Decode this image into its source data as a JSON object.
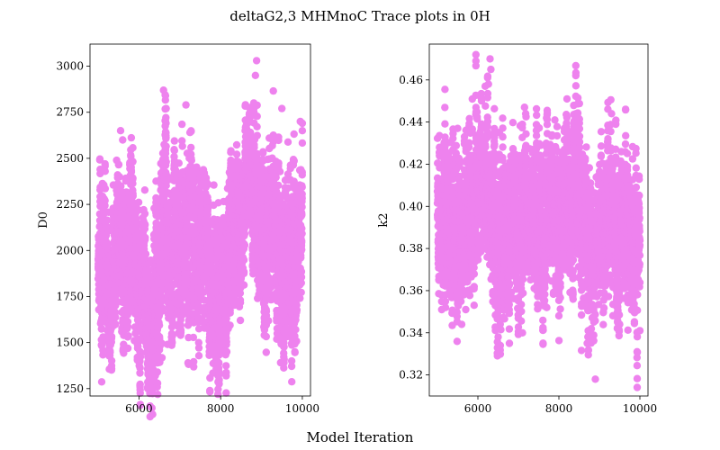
{
  "figure": {
    "title": "deltaG2,3 MHMnoC Trace plots in 0H",
    "xlabel": "Model Iteration"
  },
  "chart_data": [
    {
      "type": "scatter",
      "ylabel": "D0",
      "xlim": [
        4800,
        10200
      ],
      "ylim": [
        1210,
        3120
      ],
      "x_ticks": [
        6000,
        8000,
        10000
      ],
      "y_ticks": [
        1250,
        1500,
        1750,
        2000,
        2250,
        2500,
        2750,
        3000
      ],
      "grid": false,
      "marker_color": "#ee82ee",
      "x_range": [
        5000,
        10000
      ],
      "n_points": 5000,
      "trace": [
        [
          5000,
          1950
        ],
        [
          5100,
          1900
        ],
        [
          5200,
          2000
        ],
        [
          5300,
          1850
        ],
        [
          5400,
          1950
        ],
        [
          5500,
          2200
        ],
        [
          5600,
          1950
        ],
        [
          5700,
          1950
        ],
        [
          5800,
          2050
        ],
        [
          5900,
          1850
        ],
        [
          6000,
          1800
        ],
        [
          6100,
          1900
        ],
        [
          6200,
          1700
        ],
        [
          6300,
          1600
        ],
        [
          6400,
          1700
        ],
        [
          6500,
          2050
        ],
        [
          6600,
          2250
        ],
        [
          6700,
          2050
        ],
        [
          6800,
          2050
        ],
        [
          6900,
          2150
        ],
        [
          7000,
          2000
        ],
        [
          7100,
          1850
        ],
        [
          7200,
          2100
        ],
        [
          7300,
          2000
        ],
        [
          7400,
          2100
        ],
        [
          7500,
          2050
        ],
        [
          7600,
          2050
        ],
        [
          7700,
          1850
        ],
        [
          7800,
          1800
        ],
        [
          7900,
          1850
        ],
        [
          8000,
          1900
        ],
        [
          8100,
          1800
        ],
        [
          8200,
          2000
        ],
        [
          8300,
          2050
        ],
        [
          8400,
          2150
        ],
        [
          8500,
          2150
        ],
        [
          8600,
          2200
        ],
        [
          8700,
          2300
        ],
        [
          8800,
          2350
        ],
        [
          8900,
          2300
        ],
        [
          9000,
          2050
        ],
        [
          9100,
          1850
        ],
        [
          9200,
          2050
        ],
        [
          9300,
          2150
        ],
        [
          9400,
          1950
        ],
        [
          9500,
          1850
        ],
        [
          9600,
          1950
        ],
        [
          9700,
          2100
        ],
        [
          9800,
          2050
        ],
        [
          9900,
          2150
        ],
        [
          10000,
          2250
        ]
      ],
      "spread": 230,
      "outliers": [
        [
          5550,
          2650
        ],
        [
          5600,
          2600
        ],
        [
          6600,
          2870
        ],
        [
          6650,
          2840
        ],
        [
          7150,
          2790
        ],
        [
          8850,
          2950
        ],
        [
          8880,
          3030
        ],
        [
          9500,
          2770
        ],
        [
          9950,
          2700
        ],
        [
          10000,
          2690
        ],
        [
          6400,
          1320
        ],
        [
          6380,
          1290
        ],
        [
          6450,
          1340
        ],
        [
          7200,
          1390
        ],
        [
          8150,
          1450
        ],
        [
          5100,
          1510
        ],
        [
          9400,
          1530
        ],
        [
          6700,
          1490
        ],
        [
          5800,
          2510
        ],
        [
          5600,
          2310
        ]
      ]
    },
    {
      "type": "scatter",
      "ylabel": "k2",
      "xlim": [
        4800,
        10200
      ],
      "ylim": [
        0.31,
        0.477
      ],
      "x_ticks": [
        6000,
        8000,
        10000
      ],
      "y_ticks": [
        0.32,
        0.34,
        0.36,
        0.38,
        0.4,
        0.42,
        0.44,
        0.46
      ],
      "grid": false,
      "marker_color": "#ee82ee",
      "x_range": [
        5000,
        10000
      ],
      "n_points": 5000,
      "trace": [
        [
          5000,
          0.395
        ],
        [
          5100,
          0.39
        ],
        [
          5200,
          0.4
        ],
        [
          5300,
          0.39
        ],
        [
          5400,
          0.395
        ],
        [
          5500,
          0.395
        ],
        [
          5600,
          0.39
        ],
        [
          5700,
          0.395
        ],
        [
          5800,
          0.395
        ],
        [
          5900,
          0.4
        ],
        [
          6000,
          0.4
        ],
        [
          6100,
          0.405
        ],
        [
          6200,
          0.41
        ],
        [
          6300,
          0.405
        ],
        [
          6400,
          0.395
        ],
        [
          6500,
          0.38
        ],
        [
          6600,
          0.385
        ],
        [
          6700,
          0.39
        ],
        [
          6800,
          0.39
        ],
        [
          6900,
          0.395
        ],
        [
          7000,
          0.39
        ],
        [
          7100,
          0.4
        ],
        [
          7200,
          0.405
        ],
        [
          7300,
          0.4
        ],
        [
          7400,
          0.395
        ],
        [
          7500,
          0.395
        ],
        [
          7600,
          0.39
        ],
        [
          7700,
          0.395
        ],
        [
          7800,
          0.4
        ],
        [
          7900,
          0.4
        ],
        [
          8000,
          0.395
        ],
        [
          8100,
          0.395
        ],
        [
          8200,
          0.4
        ],
        [
          8300,
          0.395
        ],
        [
          8400,
          0.4
        ],
        [
          8500,
          0.395
        ],
        [
          8600,
          0.39
        ],
        [
          8700,
          0.38
        ],
        [
          8800,
          0.37
        ],
        [
          8900,
          0.375
        ],
        [
          9000,
          0.385
        ],
        [
          9100,
          0.39
        ],
        [
          9200,
          0.395
        ],
        [
          9300,
          0.395
        ],
        [
          9400,
          0.39
        ],
        [
          9500,
          0.39
        ],
        [
          9600,
          0.395
        ],
        [
          9700,
          0.39
        ],
        [
          9800,
          0.385
        ],
        [
          9900,
          0.385
        ],
        [
          10000,
          0.38
        ]
      ],
      "spread": 0.018,
      "outliers": [
        [
          6300,
          0.47
        ],
        [
          6320,
          0.465
        ],
        [
          6260,
          0.458
        ],
        [
          6180,
          0.457
        ],
        [
          7150,
          0.447
        ],
        [
          7180,
          0.444
        ],
        [
          8200,
          0.451
        ],
        [
          7900,
          0.441
        ],
        [
          9300,
          0.444
        ],
        [
          5500,
          0.437
        ],
        [
          8900,
          0.318
        ],
        [
          6500,
          0.338
        ],
        [
          5600,
          0.344
        ],
        [
          5700,
          0.351
        ],
        [
          7100,
          0.34
        ],
        [
          9500,
          0.344
        ],
        [
          10000,
          0.341
        ],
        [
          8700,
          0.335
        ],
        [
          5200,
          0.352
        ],
        [
          7700,
          0.352
        ]
      ]
    }
  ]
}
